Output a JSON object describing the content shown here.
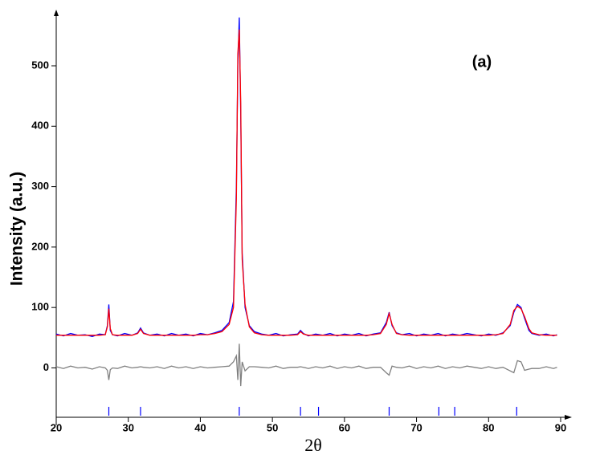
{
  "chart_data": {
    "type": "line",
    "annotation": "(a)",
    "x_label": "2θ",
    "y_label": "Intensity (a.u.)",
    "xlim": [
      20,
      90
    ],
    "ylim": [
      -95,
      585
    ],
    "xticks": [
      20,
      30,
      40,
      50,
      60,
      70,
      80,
      90
    ],
    "yticks": [
      0,
      100,
      200,
      300,
      400,
      500
    ],
    "x": [
      20,
      21,
      22,
      23,
      24,
      25,
      26,
      26.8,
      27.1,
      27.3,
      27.5,
      27.8,
      28.5,
      29.5,
      30.5,
      31.3,
      31.7,
      32.1,
      33,
      34,
      35,
      36,
      37,
      38,
      39,
      40,
      41,
      42,
      43,
      44,
      44.6,
      45.0,
      45.2,
      45.4,
      45.6,
      45.8,
      46.2,
      46.8,
      47.5,
      48.5,
      49.5,
      50.5,
      51.5,
      52.5,
      53.5,
      53.9,
      54.3,
      55,
      56,
      57,
      58,
      59,
      60,
      61,
      62,
      63,
      64,
      65,
      65.8,
      66.2,
      66.6,
      67.2,
      68,
      69,
      70,
      71,
      72,
      73,
      74,
      75,
      76,
      77,
      78,
      79,
      80,
      81,
      82,
      83,
      83.5,
      84,
      84.5,
      85,
      85.6,
      86,
      87,
      88,
      89,
      89.5
    ],
    "series": [
      {
        "color": "#0000ff",
        "values": [
          56,
          53,
          57,
          54,
          55,
          52,
          56,
          55,
          70,
          105,
          62,
          55,
          53,
          57,
          54,
          58,
          66,
          58,
          54,
          56,
          53,
          57,
          54,
          56,
          53,
          57,
          55,
          58,
          62,
          75,
          110,
          300,
          500,
          580,
          420,
          190,
          100,
          70,
          60,
          56,
          54,
          57,
          53,
          55,
          56,
          62,
          57,
          53,
          56,
          54,
          57,
          53,
          56,
          54,
          57,
          53,
          56,
          58,
          75,
          92,
          70,
          58,
          55,
          57,
          53,
          56,
          54,
          57,
          53,
          56,
          54,
          57,
          55,
          53,
          56,
          54,
          58,
          70,
          92,
          105,
          100,
          82,
          62,
          57,
          54,
          56,
          53,
          55
        ]
      },
      {
        "color": "#ff0000",
        "values": [
          54,
          54,
          54,
          54,
          54,
          54,
          54,
          55,
          68,
          98,
          65,
          55,
          54,
          54,
          54,
          57,
          64,
          57,
          54,
          54,
          54,
          54,
          54,
          54,
          54,
          55,
          55,
          57,
          60,
          72,
          100,
          280,
          520,
          560,
          440,
          180,
          105,
          68,
          58,
          55,
          54,
          54,
          54,
          54,
          55,
          60,
          56,
          54,
          54,
          54,
          54,
          54,
          54,
          54,
          54,
          54,
          55,
          57,
          72,
          90,
          72,
          57,
          55,
          54,
          54,
          54,
          54,
          54,
          54,
          54,
          54,
          54,
          54,
          54,
          54,
          55,
          57,
          72,
          95,
          102,
          98,
          85,
          65,
          58,
          55,
          54,
          54,
          54
        ]
      },
      {
        "color": "#808080",
        "values": [
          2,
          -1,
          3,
          0,
          1,
          -2,
          2,
          0,
          -4,
          -20,
          -3,
          0,
          -1,
          3,
          0,
          1,
          2,
          1,
          0,
          2,
          -1,
          3,
          0,
          2,
          -1,
          2,
          0,
          1,
          2,
          3,
          10,
          20,
          -20,
          40,
          -30,
          10,
          -5,
          2,
          2,
          1,
          0,
          3,
          -1,
          1,
          1,
          2,
          1,
          -1,
          2,
          0,
          3,
          -1,
          2,
          0,
          3,
          -1,
          1,
          1,
          -8,
          -12,
          3,
          1,
          0,
          3,
          -1,
          2,
          0,
          3,
          -1,
          2,
          0,
          3,
          1,
          -1,
          2,
          -1,
          1,
          -5,
          -8,
          12,
          10,
          -4,
          -2,
          -1,
          -1,
          2,
          -1,
          1
        ]
      }
    ],
    "bragg_color": "#0000ff",
    "bragg_positions": [
      27.3,
      31.7,
      45.4,
      53.9,
      56.4,
      66.2,
      73.1,
      75.3,
      83.9
    ]
  }
}
